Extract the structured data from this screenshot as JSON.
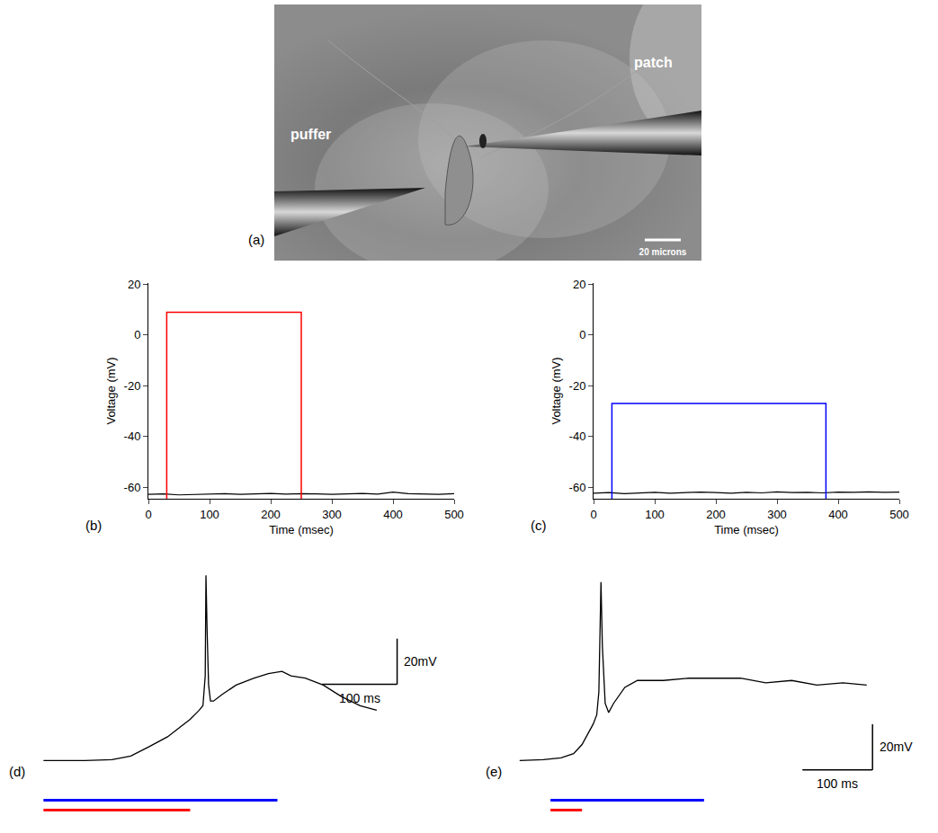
{
  "image_panel": {
    "panel": "(a)",
    "labels": [
      "puffer",
      "patch"
    ],
    "scale_bar": "20 microns"
  },
  "chart_data": [
    {
      "panel": "(b)",
      "type": "line",
      "x_label": "Time (msec)",
      "y_label": "Voltage (mV)",
      "xlim": [
        0,
        500
      ],
      "xticks": [
        0,
        100,
        200,
        300,
        400,
        500
      ],
      "ylim": [
        -64.5,
        20.5
      ],
      "yticks": [
        -60,
        -40,
        -20,
        0,
        20
      ],
      "x": [
        0,
        25,
        50,
        75,
        100,
        125,
        150,
        175,
        200,
        225,
        250,
        275,
        300,
        325,
        350,
        375,
        400,
        425,
        450,
        475,
        500
      ],
      "values": [
        -62.8,
        -62.6,
        -63.0,
        -62.9,
        -62.7,
        -62.5,
        -62.8,
        -62.6,
        -62.4,
        -62.7,
        -62.5,
        -62.6,
        -62.8,
        -62.6,
        -62.4,
        -62.7,
        -61.9,
        -62.5,
        -62.6,
        -62.8,
        -62.5
      ],
      "color": "#000000",
      "pulse": {
        "color": "#ff0000",
        "start": 30,
        "end": 250,
        "level": 9
      }
    },
    {
      "panel": "(c)",
      "type": "line",
      "x_label": "Time (msec)",
      "y_label": "Voltage (mV)",
      "xlim": [
        0,
        500
      ],
      "xticks": [
        0,
        100,
        200,
        300,
        400,
        500
      ],
      "ylim": [
        -64.5,
        20.5
      ],
      "yticks": [
        -60,
        -40,
        -20,
        0,
        20
      ],
      "x": [
        0,
        25,
        50,
        75,
        100,
        125,
        150,
        175,
        200,
        225,
        250,
        275,
        300,
        325,
        350,
        375,
        400,
        425,
        450,
        475,
        500
      ],
      "values": [
        -62.3,
        -62.1,
        -62.5,
        -62.2,
        -62.0,
        -62.3,
        -62.2,
        -61.9,
        -62.1,
        -62.3,
        -62.0,
        -62.2,
        -61.8,
        -62.1,
        -62.0,
        -62.2,
        -61.9,
        -62.0,
        -61.8,
        -62.0,
        -61.9
      ],
      "color": "#000000",
      "pulse": {
        "color": "#0000ff",
        "start": 30,
        "end": 380,
        "level": -27
      }
    },
    {
      "panel": "(d)",
      "type": "line",
      "tick_labels": false,
      "xlim": [
        -10,
        540
      ],
      "ylim": [
        -25,
        85
      ],
      "x": [
        0,
        55,
        91,
        116,
        140,
        165,
        183,
        195,
        207,
        212,
        215,
        216,
        217.5,
        219.5,
        222,
        226,
        238,
        256,
        280,
        299,
        317,
        329,
        348,
        372,
        396,
        421,
        443
      ],
      "values": [
        0,
        0,
        0.4,
        2,
        6,
        10.4,
        15,
        18,
        22,
        24,
        37,
        81,
        57,
        33,
        26,
        26,
        29,
        33,
        36,
        38,
        39,
        37,
        36,
        33,
        28,
        24,
        22
      ],
      "color": "#000000",
      "scale_bars": {
        "x": {
          "value": 100,
          "label": "100 ms"
        },
        "y": {
          "value": 20,
          "label": "20mV"
        }
      },
      "stimuli": [
        {
          "color": "#0000ff",
          "start": 0,
          "end": 311
        },
        {
          "color": "#ff0000",
          "start": 0,
          "end": 195
        }
      ]
    },
    {
      "panel": "(e)",
      "type": "line",
      "tick_labels": false,
      "xlim": [
        -10,
        580
      ],
      "ylim": [
        -25,
        85
      ],
      "x": [
        0,
        34,
        59,
        77,
        89,
        98,
        105,
        110,
        113,
        116,
        118,
        122,
        127,
        134,
        150,
        168,
        205,
        241,
        278,
        315,
        351,
        388,
        424,
        461,
        495
      ],
      "values": [
        0,
        0.4,
        1.2,
        3,
        7,
        12,
        16,
        20,
        30,
        78,
        50,
        25,
        21,
        25,
        32,
        35,
        35,
        36,
        36,
        36,
        34,
        35,
        33,
        34,
        33
      ],
      "color": "#000000",
      "scale_bars": {
        "x": {
          "value": 100,
          "label": "100 ms"
        },
        "y": {
          "value": 20,
          "label": "20mV"
        }
      },
      "stimuli": [
        {
          "color": "#0000ff",
          "start": 44,
          "end": 263
        },
        {
          "color": "#ff0000",
          "start": 44,
          "end": 89
        }
      ]
    }
  ]
}
